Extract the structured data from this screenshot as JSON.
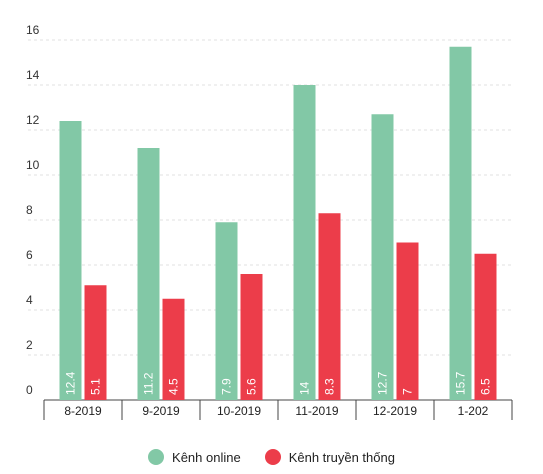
{
  "chart_data": {
    "type": "bar",
    "categories": [
      "8-2019",
      "9-2019",
      "10-2019",
      "11-2019",
      "12-2019",
      "1-202"
    ],
    "series": [
      {
        "name": "Kênh online",
        "values": [
          12.4,
          11.2,
          7.9,
          14,
          12.7,
          15.7
        ],
        "labels": [
          "12.4",
          "11.2",
          "7.9",
          "14",
          "12.7",
          "15.7"
        ],
        "color": "#82c8a6"
      },
      {
        "name": "Kênh truyền thống",
        "values": [
          5.1,
          4.5,
          5.6,
          8.3,
          7,
          6.5
        ],
        "labels": [
          "5.1",
          "4.5",
          "5.6",
          "8.3",
          "7",
          "6.5"
        ],
        "color": "#ec3d4a"
      }
    ],
    "yticks": [
      "0",
      "2",
      "4",
      "6",
      "8",
      "10",
      "12",
      "14",
      "16"
    ],
    "ylim": [
      0,
      16
    ],
    "grid": true,
    "legend_position": "bottom"
  }
}
